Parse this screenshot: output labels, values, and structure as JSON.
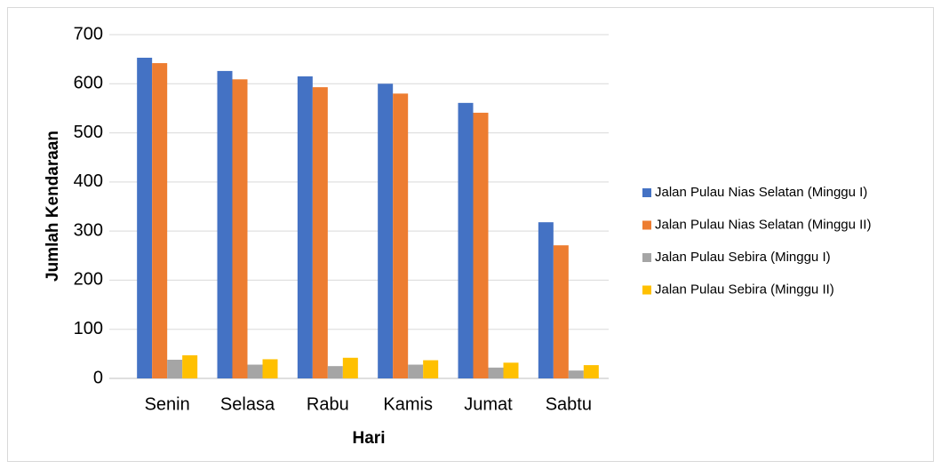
{
  "chart_data": {
    "type": "bar",
    "x_label": "Hari",
    "y_label": "Jumlah Kendaraan",
    "categories": [
      "Senin",
      "Selasa",
      "Rabu",
      "Kamis",
      "Jumat",
      "Sabtu"
    ],
    "series": [
      {
        "name": "Jalan Pulau Nias Selatan (Minggu I)",
        "color": "#4472c4",
        "values": [
          653,
          626,
          615,
          600,
          561,
          318
        ]
      },
      {
        "name": "Jalan Pulau Nias Selatan (Minggu II)",
        "color": "#ed7d31",
        "values": [
          642,
          609,
          593,
          580,
          541,
          271
        ]
      },
      {
        "name": "Jalan Pulau Sebira (Minggu I)",
        "color": "#a5a5a5",
        "values": [
          38,
          28,
          25,
          28,
          22,
          16
        ]
      },
      {
        "name": "Jalan Pulau Sebira (Minggu II)",
        "color": "#ffc000",
        "values": [
          47,
          39,
          42,
          37,
          32,
          27
        ]
      }
    ],
    "ylim": [
      0,
      700
    ],
    "yticks": [
      0,
      100,
      200,
      300,
      400,
      500,
      600,
      700
    ],
    "grid": true,
    "legend": "right"
  }
}
